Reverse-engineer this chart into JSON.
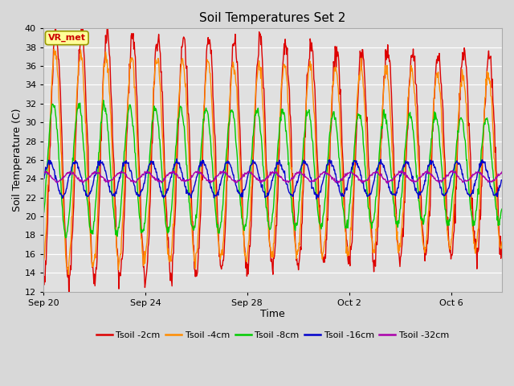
{
  "title": "Soil Temperatures Set 2",
  "xlabel": "Time",
  "ylabel": "Soil Temperature (C)",
  "ylim": [
    12,
    40
  ],
  "yticks": [
    12,
    14,
    16,
    18,
    20,
    22,
    24,
    26,
    28,
    30,
    32,
    34,
    36,
    38,
    40
  ],
  "background_color": "#d8d8d8",
  "plot_bg_color": "#e0e0e0",
  "series": [
    {
      "label": "Tsoil -2cm",
      "color": "#dd0000"
    },
    {
      "label": "Tsoil -4cm",
      "color": "#ff8c00"
    },
    {
      "label": "Tsoil -8cm",
      "color": "#00cc00"
    },
    {
      "label": "Tsoil -16cm",
      "color": "#0000cc"
    },
    {
      "label": "Tsoil -32cm",
      "color": "#aa00aa"
    }
  ],
  "xtick_labels": [
    "Sep 20",
    "Sep 24",
    "Sep 28",
    "Oct 2",
    "Oct 6"
  ],
  "xtick_positions": [
    0,
    4,
    8,
    12,
    16
  ],
  "annotation_text": "VR_met",
  "annotation_color": "#cc0000",
  "annotation_bg": "#ffff99",
  "n_days": 18,
  "n_pts_per_day": 48,
  "mean_2cm": 26.5,
  "amp_2cm_start": 13.5,
  "amp_2cm_end": 10.5,
  "mean_4cm": 26.0,
  "amp_4cm_start": 11.5,
  "amp_4cm_end": 9.0,
  "phase_4cm": 0.25,
  "mean_8cm": 25.0,
  "amp_8cm_start": 7.0,
  "amp_8cm_end": 5.5,
  "phase_8cm": 0.7,
  "mean_16cm": 24.0,
  "amp_16cm": 1.8,
  "phase_16cm": 1.6,
  "mean_32cm": 24.2,
  "amp_32cm": 0.5,
  "phase_32cm": 2.8,
  "linewidth": 1.0
}
